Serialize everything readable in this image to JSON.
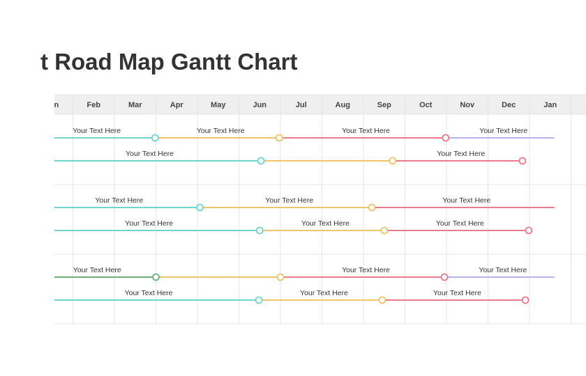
{
  "title": "Road Map Gantt Chart",
  "title_prefix": "t",
  "months": [
    "Jan",
    "Feb",
    "Mar",
    "Apr",
    "May",
    "Jun",
    "Jul",
    "Aug",
    "Sep",
    "Oct",
    "Nov",
    "Dec",
    "Jan"
  ],
  "colors": {
    "teal": "#6fd6cb",
    "yellow": "#f0c468",
    "pink": "#ec7a8e",
    "purple": "#b9b0ec",
    "green": "#6cb07c",
    "grid": "#e4e4e4",
    "header_bg": "#efefef"
  },
  "groups": [
    {
      "rows": [
        {
          "segments": [
            {
              "start": 0,
              "end": 2.98,
              "color": "teal",
              "label": "Your Text Here"
            },
            {
              "start": 2.98,
              "end": 5.97,
              "color": "yellow",
              "label": "Your Text Here"
            },
            {
              "start": 5.97,
              "end": 9.98,
              "color": "pink",
              "label": "Your Text Here"
            },
            {
              "start": 9.98,
              "end": 12.6,
              "color": "purple",
              "label": "Your Text Here"
            }
          ],
          "milestones": [
            {
              "at": 2.98,
              "color": "teal"
            },
            {
              "at": 5.97,
              "color": "yellow"
            },
            {
              "at": 9.98,
              "color": "pink"
            }
          ]
        },
        {
          "segments": [
            {
              "start": 0,
              "end": 5.53,
              "color": "teal",
              "label": "Your Text Here"
            },
            {
              "start": 5.53,
              "end": 8.7,
              "color": "yellow",
              "label": ""
            },
            {
              "start": 8.7,
              "end": 11.83,
              "color": "pink",
              "label": "Your Text Here"
            }
          ],
          "milestones": [
            {
              "at": 5.53,
              "color": "teal"
            },
            {
              "at": 8.7,
              "color": "yellow"
            },
            {
              "at": 11.83,
              "color": "pink"
            }
          ]
        }
      ]
    },
    {
      "rows": [
        {
          "segments": [
            {
              "start": 0,
              "end": 4.06,
              "color": "teal",
              "label": "Your Text Here"
            },
            {
              "start": 4.06,
              "end": 8.2,
              "color": "yellow",
              "label": "Your Text Here"
            },
            {
              "start": 8.2,
              "end": 12.6,
              "color": "pink",
              "label": "Your Text Here"
            }
          ],
          "milestones": [
            {
              "at": 4.06,
              "color": "teal"
            },
            {
              "at": 8.2,
              "color": "yellow"
            }
          ]
        },
        {
          "segments": [
            {
              "start": 0,
              "end": 5.5,
              "color": "teal",
              "label": "Your Text Here"
            },
            {
              "start": 5.5,
              "end": 8.5,
              "color": "yellow",
              "label": "Your Text Here"
            },
            {
              "start": 8.5,
              "end": 11.98,
              "color": "pink",
              "label": "Your Text Here"
            }
          ],
          "milestones": [
            {
              "at": 5.5,
              "color": "teal"
            },
            {
              "at": 8.5,
              "color": "yellow"
            },
            {
              "at": 11.98,
              "color": "pink"
            }
          ]
        }
      ]
    },
    {
      "rows": [
        {
          "segments": [
            {
              "start": 0,
              "end": 3.0,
              "color": "green",
              "label": "Your Text Here"
            },
            {
              "start": 3.0,
              "end": 6.0,
              "color": "yellow",
              "label": ""
            },
            {
              "start": 6.0,
              "end": 9.95,
              "color": "pink",
              "label": "Your Text Here"
            },
            {
              "start": 9.95,
              "end": 12.6,
              "color": "purple",
              "label": "Your Text Here"
            }
          ],
          "milestones": [
            {
              "at": 3.0,
              "color": "green"
            },
            {
              "at": 6.0,
              "color": "yellow"
            },
            {
              "at": 9.95,
              "color": "pink"
            }
          ]
        },
        {
          "segments": [
            {
              "start": 0,
              "end": 5.48,
              "color": "teal",
              "label": "Your Text Here"
            },
            {
              "start": 5.48,
              "end": 8.45,
              "color": "yellow",
              "label": "Your Text Here"
            },
            {
              "start": 8.45,
              "end": 11.9,
              "color": "pink",
              "label": "Your Text Here"
            }
          ],
          "milestones": [
            {
              "at": 5.48,
              "color": "teal"
            },
            {
              "at": 8.45,
              "color": "yellow"
            },
            {
              "at": 11.9,
              "color": "pink"
            }
          ]
        }
      ]
    }
  ]
}
